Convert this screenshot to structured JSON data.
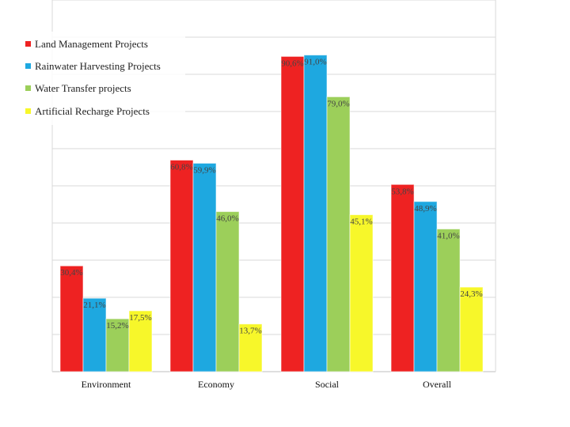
{
  "chart_data": {
    "type": "bar",
    "title": "",
    "xlabel": "",
    "ylabel": "",
    "ylim": [
      0,
      100
    ],
    "grid": true,
    "legend_position": "top-left",
    "categories": [
      "Environment",
      "Economy",
      "Social",
      "Overall"
    ],
    "series": [
      {
        "name": "Land Management Projects",
        "color": "#ee2222",
        "values": [
          30.4,
          60.8,
          90.6,
          53.8
        ],
        "labels": [
          "30,4%",
          "60,8%",
          "90,6%",
          "53,8%"
        ]
      },
      {
        "name": "Rainwater Harvesting Projects",
        "color": "#1ea8e0",
        "values": [
          21.1,
          59.9,
          91.0,
          48.9
        ],
        "labels": [
          "21,1%",
          "59,9%",
          "91,0%",
          "48,9%"
        ]
      },
      {
        "name": "Water Transfer projects",
        "color": "#9ccf5a",
        "values": [
          15.2,
          46.0,
          79.0,
          41.0
        ],
        "labels": [
          "15,2%",
          "46,0%",
          "79,0%",
          "41,0%"
        ]
      },
      {
        "name": "Artificial Recharge Projects",
        "color": "#f7f72a",
        "values": [
          17.5,
          13.7,
          45.1,
          24.3
        ],
        "labels": [
          "17,5%",
          "13,7%",
          "45,1%",
          "24,3%"
        ]
      }
    ]
  }
}
